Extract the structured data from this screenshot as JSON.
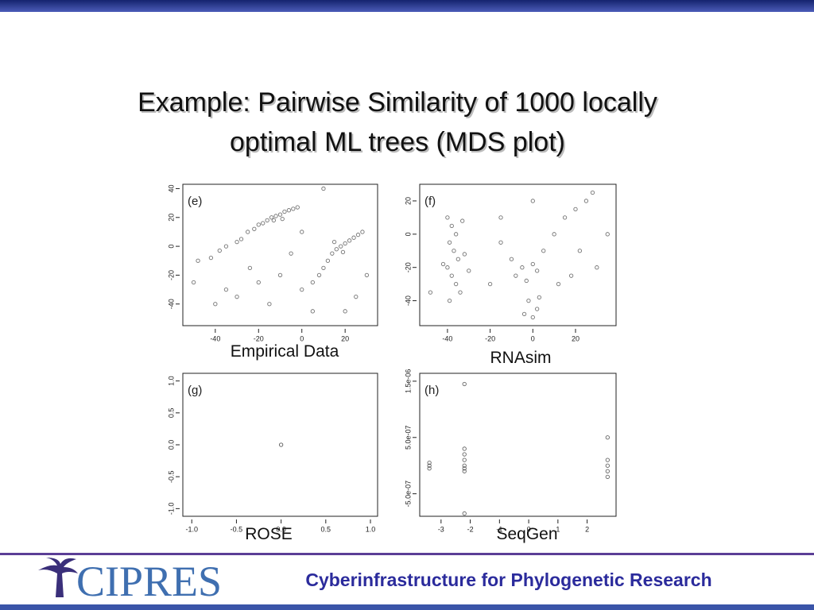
{
  "slide": {
    "title_lines": [
      "Example: Pairwise Similarity of 1000 locally",
      "optimal ML trees (MDS plot)"
    ],
    "logo": "CIPRES",
    "footer": "Cyberinfrastructure for Phylogenetic Research"
  },
  "chart_data": [
    {
      "type": "scatter",
      "panel_label": "(e)",
      "caption": "Empirical Data",
      "color": "#444",
      "x": [
        -48,
        -42,
        -38,
        -35,
        -30,
        -28,
        -25,
        -22,
        -20,
        -18,
        -16,
        -14,
        -12,
        -10,
        -8,
        -6,
        -4,
        -2,
        -13,
        -9,
        -24,
        -20,
        -30,
        -10,
        -5,
        0,
        5,
        8,
        10,
        12,
        14,
        16,
        18,
        20,
        22,
        24,
        26,
        28,
        19,
        15,
        -50,
        -40,
        5,
        25,
        30,
        10,
        -35,
        0,
        -15,
        20
      ],
      "y": [
        -10,
        -8,
        -3,
        0,
        3,
        5,
        10,
        12,
        15,
        16,
        18,
        20,
        21,
        22,
        24,
        25,
        26,
        27,
        18,
        19,
        -15,
        -25,
        -35,
        -20,
        -5,
        -30,
        -25,
        -20,
        -15,
        -10,
        -5,
        -2,
        0,
        2,
        4,
        6,
        8,
        10,
        -4,
        3,
        -25,
        -40,
        -45,
        -35,
        -20,
        40,
        -30,
        10,
        -40,
        -45
      ],
      "xlim": [
        -55,
        35
      ],
      "ylim": [
        -55,
        43
      ],
      "xticks": [
        -40,
        -20,
        0,
        20
      ],
      "yticks": [
        -40,
        -20,
        0,
        20,
        40
      ]
    },
    {
      "type": "scatter",
      "panel_label": "(f)",
      "caption": "RNAsim",
      "color": "#444",
      "x": [
        -40,
        -38,
        -36,
        -39,
        -37,
        -35,
        -40,
        -38,
        -36,
        -34,
        -39,
        -42,
        -32,
        -33,
        -30,
        -10,
        -5,
        0,
        -8,
        -3,
        2,
        5,
        -15,
        -2,
        2,
        -4,
        0,
        3,
        10,
        15,
        20,
        25,
        28,
        22,
        30,
        18,
        12,
        -20,
        -15,
        0,
        -48,
        35
      ],
      "y": [
        10,
        5,
        0,
        -5,
        -10,
        -15,
        -20,
        -25,
        -30,
        -35,
        -40,
        -18,
        -12,
        8,
        -22,
        -15,
        -20,
        -18,
        -25,
        -28,
        -22,
        -10,
        -5,
        -40,
        -45,
        -48,
        -50,
        -38,
        0,
        10,
        15,
        20,
        25,
        -10,
        -20,
        -25,
        -30,
        -30,
        10,
        20,
        -35,
        0
      ],
      "xlim": [
        -53,
        39
      ],
      "ylim": [
        -55,
        30
      ],
      "xticks": [
        -40,
        -20,
        0,
        20
      ],
      "yticks": [
        -40,
        -20,
        0,
        20
      ]
    },
    {
      "type": "scatter",
      "panel_label": "(g)",
      "caption": "ROSE",
      "color": "#222",
      "x": [
        0
      ],
      "y": [
        0
      ],
      "xlim": [
        -1.1,
        1.08
      ],
      "ylim": [
        -1.12,
        1.12
      ],
      "xticks": [
        {
          "value": -1,
          "label": "-1.0"
        },
        -0.5,
        {
          "value": 0,
          "label": "0.0"
        },
        0.5,
        {
          "value": 1,
          "label": "1.0"
        }
      ],
      "yticks": [
        {
          "value": -1,
          "label": "-1.0"
        },
        -0.5,
        {
          "value": 0,
          "label": "0.0"
        },
        0.5,
        {
          "value": 1,
          "label": "1.0"
        }
      ]
    },
    {
      "type": "scatter",
      "panel_label": "(h)",
      "caption": "SeqGen",
      "color": "#333",
      "x": [
        -3.4,
        -3.4,
        -3.4,
        -2.2,
        -2.2,
        -2.2,
        -2.2,
        -2.2,
        -2.2,
        -2.2,
        -2.2,
        2.7,
        2.7,
        2.7,
        2.7,
        2.7
      ],
      "y": [
        0,
        5e-08,
        -5e-08,
        3e-07,
        2e-07,
        1e-07,
        0,
        -5e-08,
        -1e-07,
        1.45e-06,
        -8.5e-07,
        0,
        1e-07,
        -1e-07,
        -2e-07,
        5e-07
      ],
      "xlim": [
        -3.73,
        2.99
      ],
      "ylim": [
        -9e-07,
        1.64e-06
      ],
      "xticks": [
        -3,
        -2,
        -1,
        0,
        1,
        2
      ],
      "yticks": [
        {
          "value": -5e-07,
          "label": "-5.0e-07"
        },
        {
          "value": 5e-07,
          "label": "5.0e-07"
        },
        {
          "value": 1.5e-06,
          "label": "1.5e-06"
        }
      ]
    }
  ]
}
